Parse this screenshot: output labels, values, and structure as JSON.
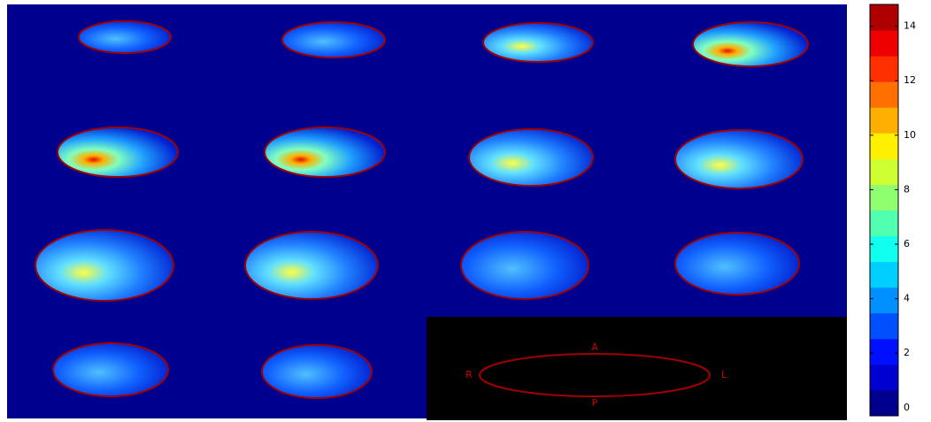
{
  "colorbar": {
    "lim": [
      -0.3,
      14.8
    ],
    "ticks": [
      0,
      2,
      4,
      6,
      8,
      10,
      12,
      14
    ],
    "colors": [
      "#00008f",
      "#0000cf",
      "#0010ff",
      "#0050ff",
      "#0090ff",
      "#00cfff",
      "#10ffef",
      "#50ffaf",
      "#90ff6f",
      "#cfff30",
      "#ffef00",
      "#ffaf00",
      "#ff7000",
      "#ff3000",
      "#ef0000",
      "#af0000"
    ]
  },
  "orientation": {
    "anterior": "A",
    "posterior": "P",
    "right": "R",
    "left": "L"
  }
}
